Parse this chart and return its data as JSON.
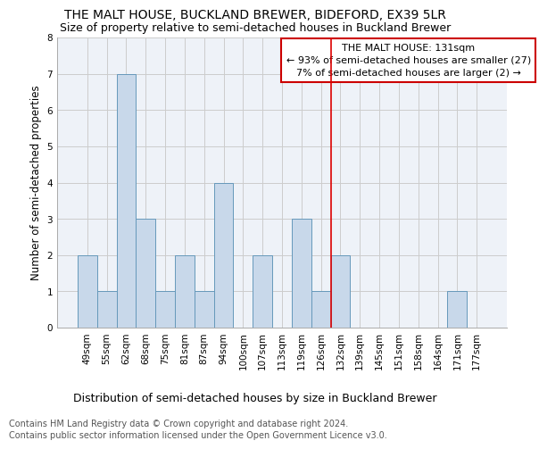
{
  "title": "THE MALT HOUSE, BUCKLAND BREWER, BIDEFORD, EX39 5LR",
  "subtitle": "Size of property relative to semi-detached houses in Buckland Brewer",
  "xlabel_bottom": "Distribution of semi-detached houses by size in Buckland Brewer",
  "ylabel": "Number of semi-detached properties",
  "categories": [
    "49sqm",
    "55sqm",
    "62sqm",
    "68sqm",
    "75sqm",
    "81sqm",
    "87sqm",
    "94sqm",
    "100sqm",
    "107sqm",
    "113sqm",
    "119sqm",
    "126sqm",
    "132sqm",
    "139sqm",
    "145sqm",
    "151sqm",
    "158sqm",
    "164sqm",
    "171sqm",
    "177sqm"
  ],
  "values": [
    2,
    1,
    7,
    3,
    1,
    2,
    1,
    4,
    0,
    2,
    0,
    3,
    1,
    2,
    0,
    0,
    0,
    0,
    0,
    1,
    0
  ],
  "bar_color": "#c8d8ea",
  "bar_edge_color": "#6699bb",
  "highlight_index": 13,
  "highlight_line_color": "#dd0000",
  "annotation_box_text": "THE MALT HOUSE: 131sqm\n← 93% of semi-detached houses are smaller (27)\n7% of semi-detached houses are larger (2) →",
  "annotation_box_color": "#ffffff",
  "annotation_box_edge_color": "#cc0000",
  "ylim": [
    0,
    8
  ],
  "yticks": [
    0,
    1,
    2,
    3,
    4,
    5,
    6,
    7,
    8
  ],
  "grid_color": "#cccccc",
  "background_color": "#eef2f8",
  "footer_line1": "Contains HM Land Registry data © Crown copyright and database right 2024.",
  "footer_line2": "Contains public sector information licensed under the Open Government Licence v3.0.",
  "title_fontsize": 10,
  "subtitle_fontsize": 9,
  "annotation_fontsize": 8,
  "tick_fontsize": 7.5,
  "ylabel_fontsize": 8.5,
  "xlabel_fontsize": 9,
  "footer_fontsize": 7
}
